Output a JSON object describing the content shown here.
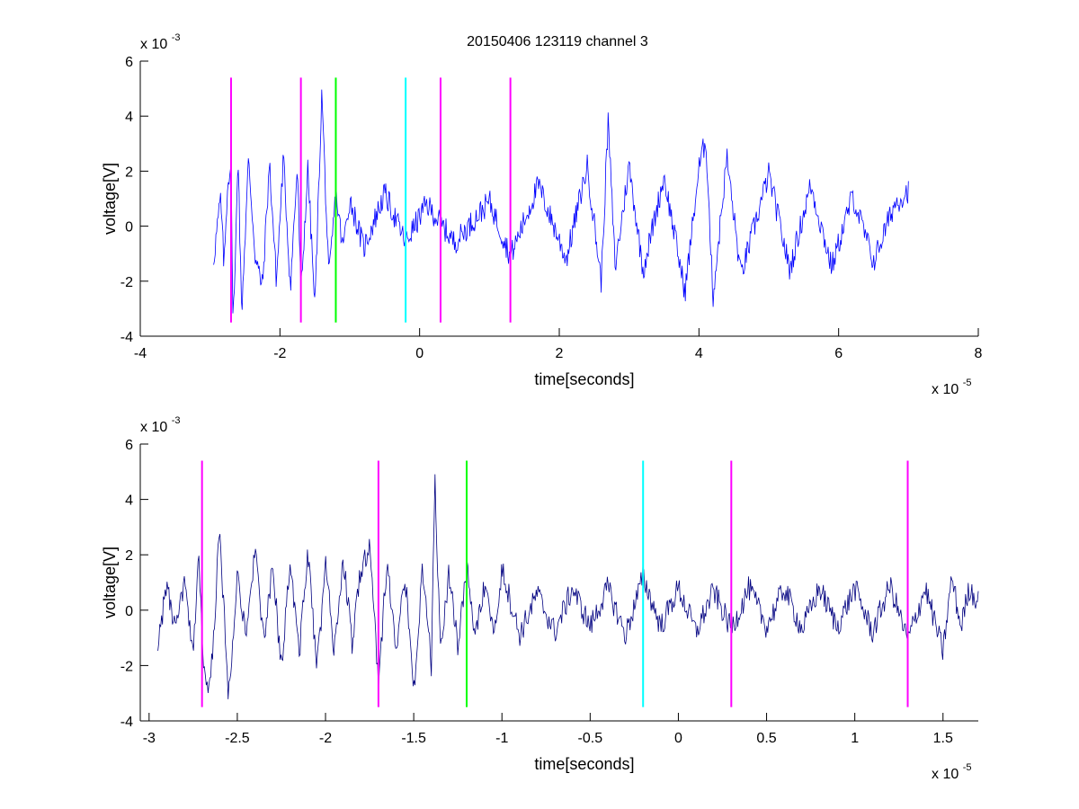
{
  "figure": {
    "title": "20150406 123119 channel 3"
  },
  "chart_data": [
    {
      "type": "line",
      "xlabel": "time[seconds]",
      "ylabel": "voltage[V]",
      "x_exponent_label": "x 10",
      "x_exponent": "-5",
      "y_exponent_label": "x 10",
      "y_exponent": "-3",
      "xlim": [
        -4e-05,
        8e-05
      ],
      "ylim": [
        -0.004,
        0.006
      ],
      "x_ticks": [
        -4e-05,
        -2e-05,
        0,
        2e-05,
        4e-05,
        6e-05,
        8e-05
      ],
      "x_tick_labels": [
        "-4",
        "-2",
        "0",
        "2",
        "4",
        "6",
        "8"
      ],
      "y_ticks": [
        -0.004,
        -0.002,
        0,
        0.002,
        0.004,
        0.006
      ],
      "y_tick_labels": [
        "-4",
        "-2",
        "0",
        "2",
        "4",
        "6"
      ],
      "grid": false,
      "series": [
        {
          "color": "#0000ff",
          "x_range": [
            -2.95e-05,
            7e-05
          ],
          "points": [
            [
              -2.95e-05,
              -0.0012
            ],
            [
              -2.85e-05,
              0.001
            ],
            [
              -2.8e-05,
              -0.0015
            ],
            [
              -2.75e-05,
              0.0015
            ],
            [
              -2.7e-05,
              0.0024
            ],
            [
              -2.68e-05,
              -0.0028
            ],
            [
              -2.65e-05,
              -0.0025
            ],
            [
              -2.6e-05,
              0.0029
            ],
            [
              -2.55e-05,
              -0.0032
            ],
            [
              -2.45e-05,
              0.0024
            ],
            [
              -2.35e-05,
              -0.0012
            ],
            [
              -2.25e-05,
              -0.0022
            ],
            [
              -2.15e-05,
              0.0023
            ],
            [
              -2.05e-05,
              -0.002
            ],
            [
              -1.95e-05,
              0.0025
            ],
            [
              -1.85e-05,
              -0.0022
            ],
            [
              -1.75e-05,
              0.0022
            ],
            [
              -1.7e-05,
              -0.0025
            ],
            [
              -1.6e-05,
              0.0021
            ],
            [
              -1.5e-05,
              -0.003
            ],
            [
              -1.4e-05,
              0.0049
            ],
            [
              -1.3e-05,
              -0.002
            ],
            [
              -1.2e-05,
              0.0012
            ],
            [
              -1.1e-05,
              -0.0008
            ],
            [
              -1e-05,
              0.001
            ],
            [
              -8e-06,
              -0.0008
            ],
            [
              -5e-06,
              0.0012
            ],
            [
              -2e-06,
              -0.0006
            ],
            [
              1e-06,
              0.0008
            ],
            [
              5e-06,
              -0.0006
            ],
            [
              1e-05,
              0.0009
            ],
            [
              1.3e-05,
              -0.0011
            ],
            [
              1.7e-05,
              0.0015
            ],
            [
              2.1e-05,
              -0.0012
            ],
            [
              2.4e-05,
              0.0022
            ],
            [
              2.6e-05,
              -0.002
            ],
            [
              2.7e-05,
              0.0038
            ],
            [
              2.8e-05,
              -0.0015
            ],
            [
              3e-05,
              0.0022
            ],
            [
              3.2e-05,
              -0.0016
            ],
            [
              3.5e-05,
              0.0018
            ],
            [
              3.8e-05,
              -0.0024
            ],
            [
              4e-05,
              0.0021
            ],
            [
              4.1e-05,
              0.0032
            ],
            [
              4.2e-05,
              -0.0026
            ],
            [
              4.4e-05,
              0.0025
            ],
            [
              4.6e-05,
              -0.0018
            ],
            [
              5e-05,
              0.0019
            ],
            [
              5.3e-05,
              -0.0016
            ],
            [
              5.6e-05,
              0.0015
            ],
            [
              5.9e-05,
              -0.0015
            ],
            [
              6.2e-05,
              0.0011
            ],
            [
              6.5e-05,
              -0.0013
            ],
            [
              6.8e-05,
              0.0008
            ],
            [
              7e-05,
              0.0013
            ]
          ]
        }
      ],
      "markers": [
        {
          "x": -2.7e-05,
          "color": "#ff00ff"
        },
        {
          "x": -1.7e-05,
          "color": "#ff00ff"
        },
        {
          "x": -1.2e-05,
          "color": "#00ff00"
        },
        {
          "x": -2e-06,
          "color": "#00ffff"
        },
        {
          "x": 3e-06,
          "color": "#ff00ff"
        },
        {
          "x": 1.3e-05,
          "color": "#ff00ff"
        }
      ],
      "marker_yrange": [
        -0.0035,
        0.0054
      ]
    },
    {
      "type": "line",
      "xlabel": "time[seconds]",
      "ylabel": "voltage[V]",
      "x_exponent_label": "x 10",
      "x_exponent": "-5",
      "y_exponent_label": "x 10",
      "y_exponent": "-3",
      "xlim": [
        -3.05e-05,
        1.7e-05
      ],
      "ylim": [
        -0.004,
        0.006
      ],
      "x_ticks": [
        -3e-05,
        -2.5e-05,
        -2e-05,
        -1.5e-05,
        -1e-05,
        -5e-06,
        0,
        5e-06,
        1e-05,
        1.5e-05
      ],
      "x_tick_labels": [
        "-3",
        "-2.5",
        "-2",
        "-1.5",
        "-1",
        "-0.5",
        "0",
        "0.5",
        "1",
        "1.5"
      ],
      "y_ticks": [
        -0.004,
        -0.002,
        0,
        0.002,
        0.004,
        0.006
      ],
      "y_tick_labels": [
        "-4",
        "-2",
        "0",
        "2",
        "4",
        "6"
      ],
      "grid": false,
      "series": [
        {
          "color": "#000080",
          "x_range": [
            -2.95e-05,
            1.7e-05
          ],
          "points": [
            [
              -2.95e-05,
              -0.0012
            ],
            [
              -2.9e-05,
              0.0009
            ],
            [
              -2.85e-05,
              -0.0008
            ],
            [
              -2.8e-05,
              0.001
            ],
            [
              -2.75e-05,
              -0.0018
            ],
            [
              -2.72e-05,
              0.0024
            ],
            [
              -2.7e-05,
              -0.0012
            ],
            [
              -2.68e-05,
              -0.0028
            ],
            [
              -2.65e-05,
              -0.0025
            ],
            [
              -2.6e-05,
              0.0029
            ],
            [
              -2.55e-05,
              -0.0032
            ],
            [
              -2.5e-05,
              0.0015
            ],
            [
              -2.45e-05,
              -0.0012
            ],
            [
              -2.4e-05,
              0.0024
            ],
            [
              -2.35e-05,
              -0.0012
            ],
            [
              -2.3e-05,
              0.0015
            ],
            [
              -2.25e-05,
              -0.002
            ],
            [
              -2.2e-05,
              0.0018
            ],
            [
              -2.15e-05,
              -0.0016
            ],
            [
              -2.1e-05,
              0.0021
            ],
            [
              -2.05e-05,
              -0.0022
            ],
            [
              -2e-05,
              0.0016
            ],
            [
              -1.95e-05,
              -0.0015
            ],
            [
              -1.9e-05,
              0.0019
            ],
            [
              -1.85e-05,
              -0.0012
            ],
            [
              -1.8e-05,
              0.0015
            ],
            [
              -1.75e-05,
              0.0022
            ],
            [
              -1.7e-05,
              -0.0025
            ],
            [
              -1.65e-05,
              0.0018
            ],
            [
              -1.6e-05,
              -0.0015
            ],
            [
              -1.55e-05,
              0.0013
            ],
            [
              -1.5e-05,
              -0.003
            ],
            [
              -1.45e-05,
              0.0015
            ],
            [
              -1.4e-05,
              -0.002
            ],
            [
              -1.38e-05,
              0.0049
            ],
            [
              -1.35e-05,
              -0.0015
            ],
            [
              -1.3e-05,
              0.0014
            ],
            [
              -1.25e-05,
              -0.0012
            ],
            [
              -1.2e-05,
              0.0015
            ],
            [
              -1.15e-05,
              -0.001
            ],
            [
              -1.1e-05,
              0.0008
            ],
            [
              -1.05e-05,
              -0.0008
            ],
            [
              -1e-05,
              0.0015
            ],
            [
              -9e-06,
              -0.0009
            ],
            [
              -8e-06,
              0.0006
            ],
            [
              -7e-06,
              -0.0008
            ],
            [
              -6e-06,
              0.0008
            ],
            [
              -5e-06,
              -0.0006
            ],
            [
              -4e-06,
              0.0008
            ],
            [
              -3e-06,
              -0.0009
            ],
            [
              -2e-06,
              0.0012
            ],
            [
              -1e-06,
              -0.0006
            ],
            [
              0.0,
              0.0008
            ],
            [
              1e-06,
              -0.0008
            ],
            [
              2e-06,
              0.0007
            ],
            [
              3e-06,
              -0.0007
            ],
            [
              4e-06,
              0.0008
            ],
            [
              5e-06,
              -0.0006
            ],
            [
              6e-06,
              0.0008
            ],
            [
              7e-06,
              -0.0007
            ],
            [
              8e-06,
              0.0008
            ],
            [
              9e-06,
              -0.0006
            ],
            [
              1e-05,
              0.0008
            ],
            [
              1.1e-05,
              -0.0008
            ],
            [
              1.2e-05,
              0.0009
            ],
            [
              1.3e-05,
              -0.0011
            ],
            [
              1.4e-05,
              0.0008
            ],
            [
              1.5e-05,
              -0.0015
            ],
            [
              1.55e-05,
              0.0012
            ],
            [
              1.6e-05,
              -0.0006
            ],
            [
              1.65e-05,
              0.0008
            ],
            [
              1.7e-05,
              0.0003
            ]
          ]
        }
      ],
      "markers": [
        {
          "x": -2.7e-05,
          "color": "#ff00ff"
        },
        {
          "x": -1.7e-05,
          "color": "#ff00ff"
        },
        {
          "x": -1.2e-05,
          "color": "#00ff00"
        },
        {
          "x": -2e-06,
          "color": "#00ffff"
        },
        {
          "x": 3e-06,
          "color": "#ff00ff"
        },
        {
          "x": 1.3e-05,
          "color": "#ff00ff"
        }
      ],
      "marker_yrange": [
        -0.0035,
        0.0054
      ]
    }
  ]
}
